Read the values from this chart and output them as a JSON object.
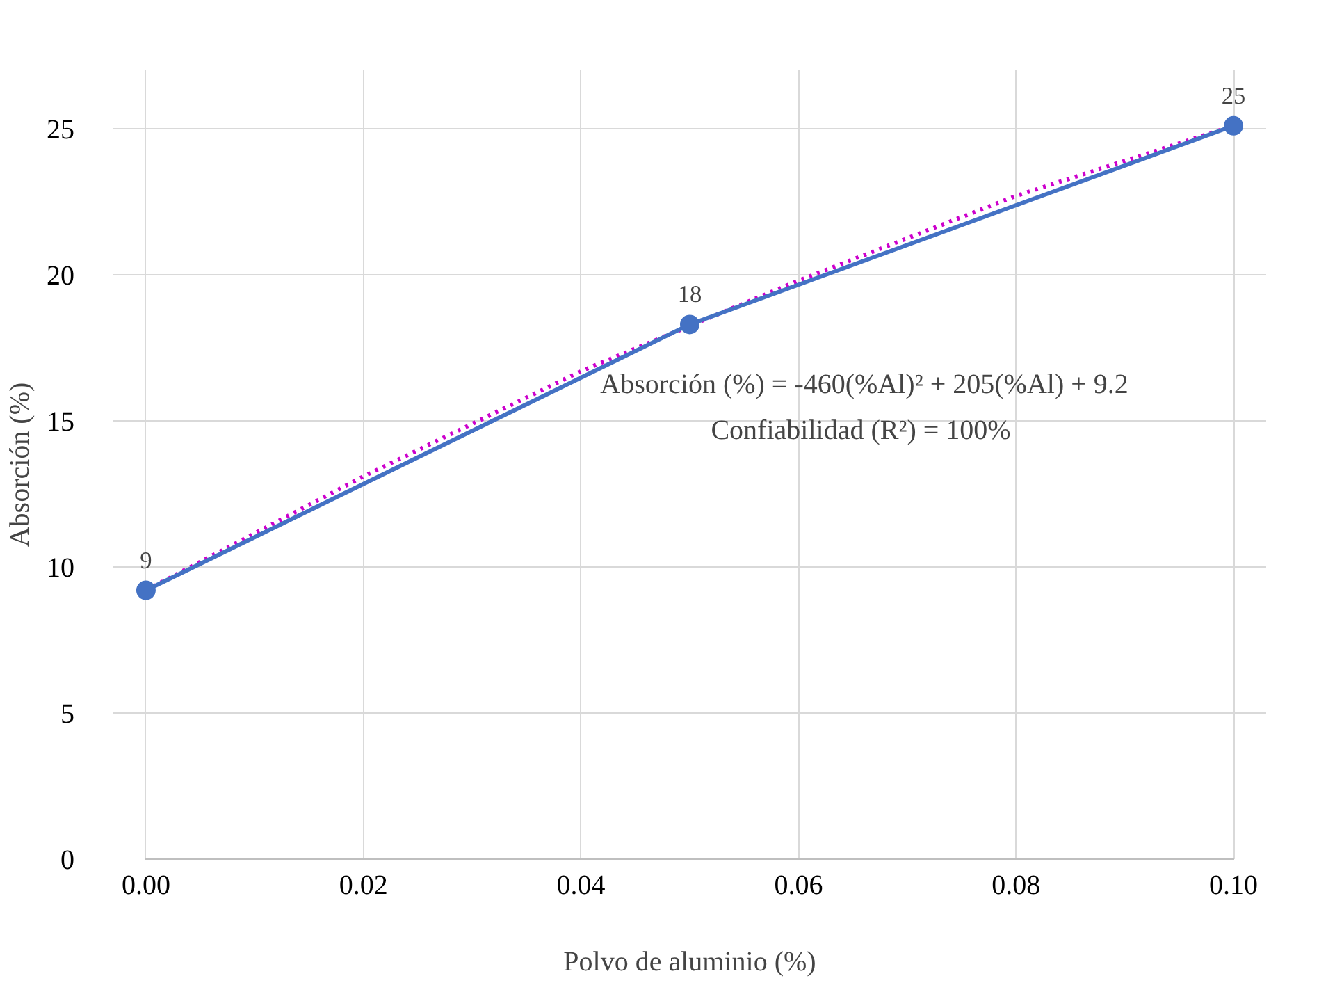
{
  "chart_data": {
    "type": "line",
    "xlabel": "Polvo de aluminio (%)",
    "ylabel": "Absorción (%)",
    "xlim": [
      0,
      0.1
    ],
    "xticks": [
      {
        "value": 0,
        "label": "0.00"
      },
      {
        "value": 0.02,
        "label": "0.02"
      },
      {
        "value": 0.04,
        "label": "0.04"
      },
      {
        "value": 0.06,
        "label": "0.06"
      },
      {
        "value": 0.08,
        "label": "0.08"
      },
      {
        "value": 0.1,
        "label": "0.10"
      }
    ],
    "ylim": [
      0,
      27
    ],
    "yticks": [
      0,
      5,
      10,
      15,
      20,
      25
    ],
    "grid": true,
    "series": [
      {
        "color": "#4472c4",
        "marker": "circle",
        "x": [
          0,
          0.05,
          0.1
        ],
        "values": [
          9.2,
          18.3,
          25.1
        ],
        "value_labels": [
          "9",
          "18",
          "25"
        ]
      },
      {
        "color": "#cc00cc",
        "marker": "none",
        "line_style": "dotted",
        "x": [
          0,
          0.02,
          0.04,
          0.06,
          0.08,
          0.1
        ],
        "values": [
          9.2,
          13.1,
          16.7,
          19.8,
          22.7,
          25.1
        ]
      }
    ],
    "annotations": [
      "Absorción (%) = -460(%Al)² + 205(%Al) + 9.2",
      "Confiabilidad (R²)  = 100%"
    ]
  }
}
